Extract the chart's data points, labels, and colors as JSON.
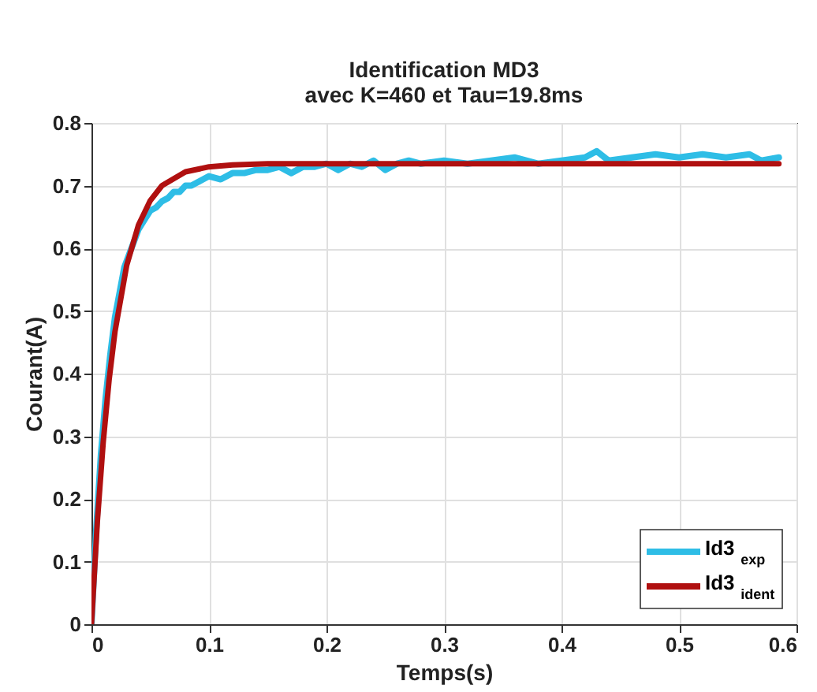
{
  "chart_data": {
    "type": "line",
    "title": "Identification MD3",
    "subtitle": "avec K=460 et Tau=19.8ms",
    "xlabel": "Temps(s)",
    "ylabel": "Courant(A)",
    "xlim": [
      0,
      0.6
    ],
    "xticks": [
      0,
      0.1,
      0.2,
      0.3,
      0.4,
      0.5,
      0.6
    ],
    "ylim": [
      0,
      0.8
    ],
    "yticks": [
      0,
      0.1,
      0.2,
      0.3,
      0.4,
      0.5,
      0.6,
      0.7,
      0.8
    ],
    "grid": true,
    "legend": "bottom right",
    "line_style": "solid",
    "marker": "none",
    "series": [
      {
        "name": "Id3$_{exp}$",
        "color": "#2ebde6",
        "x": [
          0,
          0.004,
          0.008,
          0.012,
          0.016,
          0.02,
          0.024,
          0.028,
          0.032,
          0.036,
          0.04,
          0.045,
          0.05,
          0.055,
          0.06,
          0.065,
          0.07,
          0.075,
          0.08,
          0.085,
          0.09,
          0.095,
          0.1,
          0.11,
          0.12,
          0.13,
          0.14,
          0.15,
          0.16,
          0.17,
          0.18,
          0.19,
          0.2,
          0.21,
          0.22,
          0.23,
          0.24,
          0.25,
          0.26,
          0.27,
          0.28,
          0.3,
          0.32,
          0.34,
          0.36,
          0.38,
          0.4,
          0.42,
          0.43,
          0.44,
          0.46,
          0.48,
          0.5,
          0.52,
          0.54,
          0.56,
          0.57,
          0.585
        ],
        "values": [
          0,
          0.15,
          0.27,
          0.36,
          0.43,
          0.49,
          0.53,
          0.57,
          0.59,
          0.61,
          0.63,
          0.645,
          0.66,
          0.665,
          0.675,
          0.68,
          0.69,
          0.69,
          0.7,
          0.7,
          0.705,
          0.71,
          0.715,
          0.71,
          0.72,
          0.72,
          0.725,
          0.725,
          0.73,
          0.72,
          0.73,
          0.73,
          0.735,
          0.725,
          0.735,
          0.73,
          0.74,
          0.725,
          0.735,
          0.74,
          0.735,
          0.74,
          0.735,
          0.74,
          0.745,
          0.735,
          0.74,
          0.745,
          0.755,
          0.74,
          0.745,
          0.75,
          0.745,
          0.75,
          0.745,
          0.75,
          0.74,
          0.745
        ]
      },
      {
        "name": "Id3$_{ident}$",
        "color": "#b01010",
        "x": [
          0,
          0.005,
          0.01,
          0.015,
          0.02,
          0.03,
          0.04,
          0.05,
          0.06,
          0.08,
          0.1,
          0.12,
          0.15,
          0.2,
          0.3,
          0.4,
          0.5,
          0.585
        ],
        "values": [
          0,
          0.164,
          0.291,
          0.39,
          0.467,
          0.573,
          0.637,
          0.676,
          0.7,
          0.722,
          0.73,
          0.733,
          0.735,
          0.735,
          0.735,
          0.735,
          0.735,
          0.735
        ]
      }
    ]
  }
}
